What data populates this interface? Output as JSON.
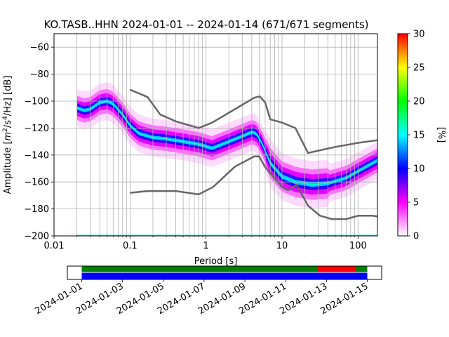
{
  "chart_data": [
    {
      "type": "heatmap",
      "title": "KO.TASB..HHN   2024-01-01 -- 2024-01-14  (671/671 segments)",
      "xlabel": "Period [s]",
      "ylabel_parts": {
        "pre": "Amplitude [",
        "m": "m",
        "m_exp": "2",
        "mid": "/s",
        "s_exp": "4",
        "post": "/Hz] [dB]"
      },
      "x_scale": "log",
      "xlim": [
        0.01,
        180
      ],
      "ylim": [
        -200,
        -50
      ],
      "x_ticks": [
        {
          "value": 0.01,
          "label": "0.01"
        },
        {
          "value": 0.1,
          "label": "0.1"
        },
        {
          "value": 1,
          "label": "1"
        },
        {
          "value": 10,
          "label": "10"
        },
        {
          "value": 100,
          "label": "100"
        }
      ],
      "y_ticks": [
        {
          "value": -60,
          "label": "−60"
        },
        {
          "value": -80,
          "label": "−80"
        },
        {
          "value": -100,
          "label": "−100"
        },
        {
          "value": -120,
          "label": "−120"
        },
        {
          "value": -140,
          "label": "−140"
        },
        {
          "value": -160,
          "label": "−160"
        },
        {
          "value": -180,
          "label": "−180"
        },
        {
          "value": -200,
          "label": "−200"
        }
      ],
      "grid": true,
      "colorbar": {
        "label": "[%]",
        "min": 0,
        "max": 30,
        "ticks": [
          "0",
          "5",
          "10",
          "15",
          "20",
          "25",
          "30"
        ],
        "colors": [
          "#ffffff",
          "#ff00ff",
          "#0000ff",
          "#00ffff",
          "#00ff00",
          "#ffff00",
          "#ff0000"
        ]
      },
      "mode_curve": {
        "period": [
          0.02,
          0.025,
          0.03,
          0.04,
          0.05,
          0.06,
          0.08,
          0.1,
          0.13,
          0.2,
          0.3,
          0.5,
          0.8,
          1.2,
          2,
          3,
          4,
          4.6,
          5.5,
          7,
          10,
          15,
          25,
          40,
          70,
          100,
          180
        ],
        "db": [
          -105,
          -107,
          -106,
          -101,
          -100,
          -102,
          -110,
          -118,
          -124,
          -127,
          -128,
          -130,
          -132,
          -135,
          -130,
          -126,
          -123,
          -124,
          -132,
          -146,
          -156,
          -160,
          -162,
          -161,
          -157,
          -152,
          -144
        ]
      },
      "noise_model_curves": [
        {
          "period": [
            0.1,
            0.17,
            0.25,
            0.4,
            0.8,
            1.2,
            2.4,
            4.3,
            5.1,
            6,
            7,
            10,
            15,
            22,
            50,
            100,
            180
          ],
          "db": [
            -91.5,
            -97,
            -110,
            -115,
            -120,
            -116,
            -106,
            -97.5,
            -96.5,
            -101,
            -113.5,
            -116,
            -120,
            -138.5,
            -134,
            -131,
            -129
          ]
        },
        {
          "period": [
            0.1,
            0.17,
            0.4,
            0.8,
            1.24,
            2.4,
            4.3,
            5,
            6,
            10,
            12,
            15.6,
            21.9,
            31.6,
            45,
            70,
            101,
            154,
            180
          ],
          "db": [
            -168,
            -166.7,
            -166.7,
            -169.2,
            -163.7,
            -148.6,
            -141.1,
            -141.1,
            -149,
            -163.8,
            -166.2,
            -162.1,
            -177.5,
            -185,
            -187.5,
            -187.5,
            -185,
            -185,
            -185.5
          ]
        }
      ],
      "bottom_line_db": -200
    },
    {
      "type": "timeline",
      "tick_labels": [
        "2024-01-01",
        "2024-01-03",
        "2024-01-05",
        "2024-01-07",
        "2024-01-09",
        "2024-01-11",
        "2024-01-13",
        "2024-01-15"
      ],
      "data_coverage": {
        "color": "#0000ff",
        "start_day": 0,
        "end_day": 14
      },
      "segment_coverage": {
        "color": "#008000",
        "start_day": 0,
        "end_day": 14
      },
      "gap": {
        "color": "#ff0000",
        "start_day": 11.55,
        "end_day": 13.45
      }
    }
  ]
}
